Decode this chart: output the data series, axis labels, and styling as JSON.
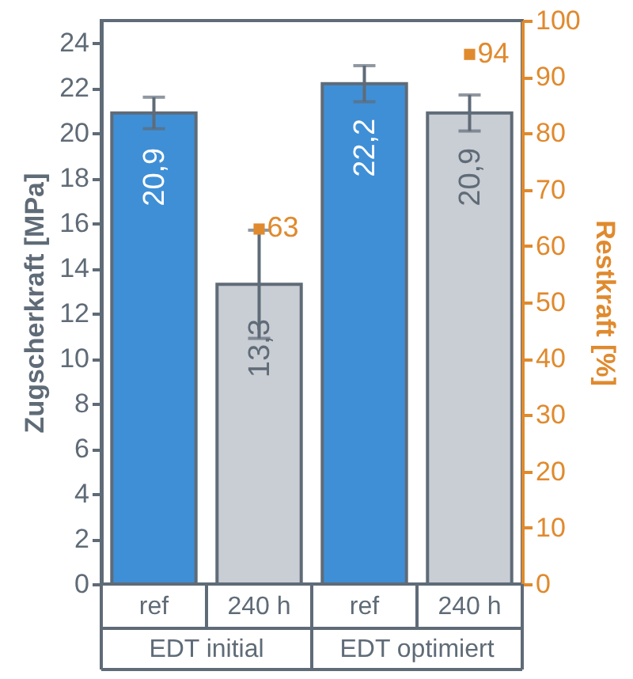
{
  "chart_data": {
    "type": "bar",
    "categories": [
      "ref",
      "240 h",
      "ref",
      "240 h"
    ],
    "ylabel": "Zugscherkraft [MPa]",
    "y2label": "Restkraft [%]",
    "ylim": [
      0,
      25
    ],
    "yticks": [
      0,
      2,
      4,
      6,
      8,
      10,
      12,
      14,
      16,
      18,
      20,
      22,
      24
    ],
    "y2lim": [
      0,
      100
    ],
    "y2ticks": [
      0,
      10,
      20,
      30,
      40,
      50,
      60,
      70,
      80,
      90,
      100
    ],
    "annotations": [
      "EDT initial",
      "EDT optimiert"
    ],
    "series": [
      {
        "colors": [
          "#3f8fd6",
          "#c9cdd4",
          "#3f8fd6",
          "#c9cdd4"
        ],
        "values": [
          20.9,
          13.3,
          22.2,
          20.9
        ],
        "errors": [
          0.7,
          2.4,
          0.8,
          0.8
        ],
        "value_labels": [
          "20,9",
          "13,3",
          "22,2",
          "20,9"
        ]
      },
      {
        "type": "scatter",
        "axis": "y2",
        "color": "#e08a2e",
        "marker": "square",
        "values": [
          null,
          63,
          null,
          94
        ],
        "value_labels": [
          null,
          "63",
          null,
          "94"
        ]
      }
    ]
  }
}
